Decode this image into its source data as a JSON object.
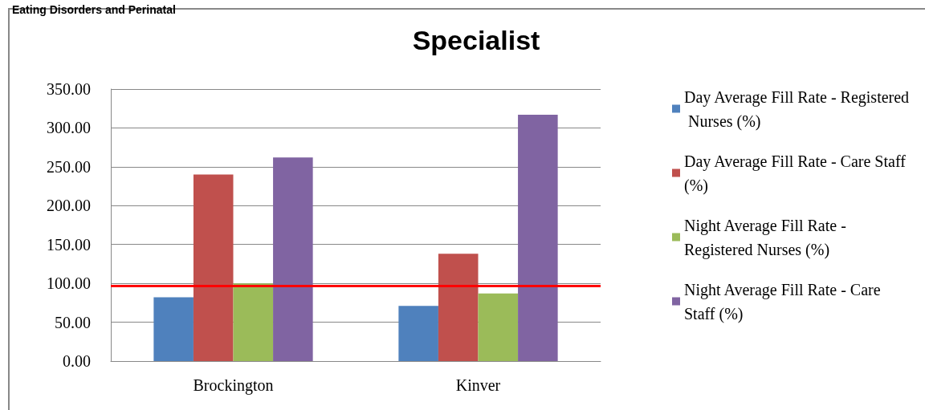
{
  "chart_data": {
    "type": "bar",
    "title": "Specialist",
    "annotations": [
      "Eating Disorders and Perinatal"
    ],
    "categories": [
      "Brockington",
      "Kinver"
    ],
    "series": [
      {
        "name": "Day Average Fill Rate - Registered Nurses (%)",
        "color": "#4f81bd",
        "values": [
          82,
          71
        ]
      },
      {
        "name": "Day Average Fill Rate - Care Staff (%)",
        "color": "#c0504d",
        "values": [
          240,
          138
        ]
      },
      {
        "name": "Night Average Fill Rate - Registered Nurses (%)",
        "color": "#9bbb59",
        "values": [
          100,
          87
        ]
      },
      {
        "name": "Night Average Fill Rate - Care Staff (%)",
        "color": "#8064a2",
        "values": [
          262,
          317
        ]
      }
    ],
    "ylim": [
      0,
      350
    ],
    "yticks": [
      {
        "value": 0,
        "label": "0.00"
      },
      {
        "value": 50,
        "label": "50.00"
      },
      {
        "value": 100,
        "label": "100.00"
      },
      {
        "value": 150,
        "label": "150.00"
      },
      {
        "value": 200,
        "label": "200.00"
      },
      {
        "value": 250,
        "label": "250.00"
      },
      {
        "value": 300,
        "label": "300.00"
      },
      {
        "value": 350,
        "label": "350.00"
      }
    ],
    "grid": "y",
    "legend": "right",
    "ref_lines": [
      {
        "axis": "y",
        "value": 97,
        "color": "#ff0000",
        "line_style": "solid"
      }
    ]
  }
}
